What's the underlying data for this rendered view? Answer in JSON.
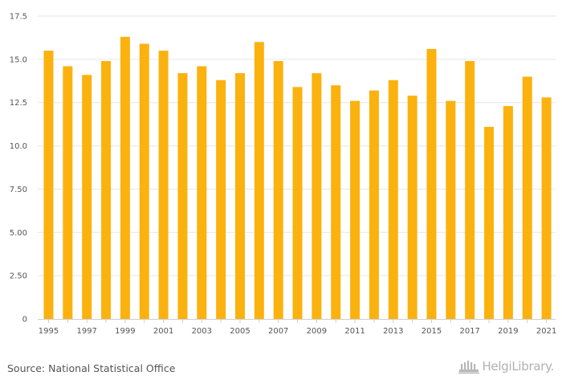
{
  "chart_data": {
    "type": "bar",
    "title": "",
    "xlabel": "",
    "ylabel": "",
    "ylim": [
      0,
      17.5
    ],
    "yticks": [
      "0",
      "2.50",
      "5.00",
      "7.50",
      "10.0",
      "12.5",
      "15.0",
      "17.5"
    ],
    "ytick_values": [
      0,
      2.5,
      5,
      7.5,
      10,
      12.5,
      15,
      17.5
    ],
    "categories": [
      "1995",
      "1996",
      "1997",
      "1998",
      "1999",
      "2000",
      "2001",
      "2002",
      "2003",
      "2004",
      "2005",
      "2006",
      "2007",
      "2008",
      "2009",
      "2010",
      "2011",
      "2012",
      "2013",
      "2014",
      "2015",
      "2016",
      "2017",
      "2018",
      "2019",
      "2020",
      "2021"
    ],
    "xtick_labels": [
      "1995",
      "1997",
      "1999",
      "2001",
      "2003",
      "2005",
      "2007",
      "2009",
      "2011",
      "2013",
      "2015",
      "2017",
      "2019",
      "2021"
    ],
    "values": [
      15.5,
      14.6,
      14.1,
      14.9,
      16.3,
      15.9,
      15.5,
      14.2,
      14.6,
      13.8,
      14.2,
      16.0,
      14.9,
      13.4,
      14.2,
      13.5,
      12.6,
      13.2,
      13.8,
      12.9,
      15.6,
      12.6,
      14.9,
      11.1,
      12.3,
      14.0,
      12.8
    ],
    "bar_color": "#FBB20F",
    "grid": true
  },
  "footer": {
    "source": "Source: National Statistical Office",
    "logo_text": "HelgiLibrary.",
    "logo_icon": "library-building-icon"
  }
}
